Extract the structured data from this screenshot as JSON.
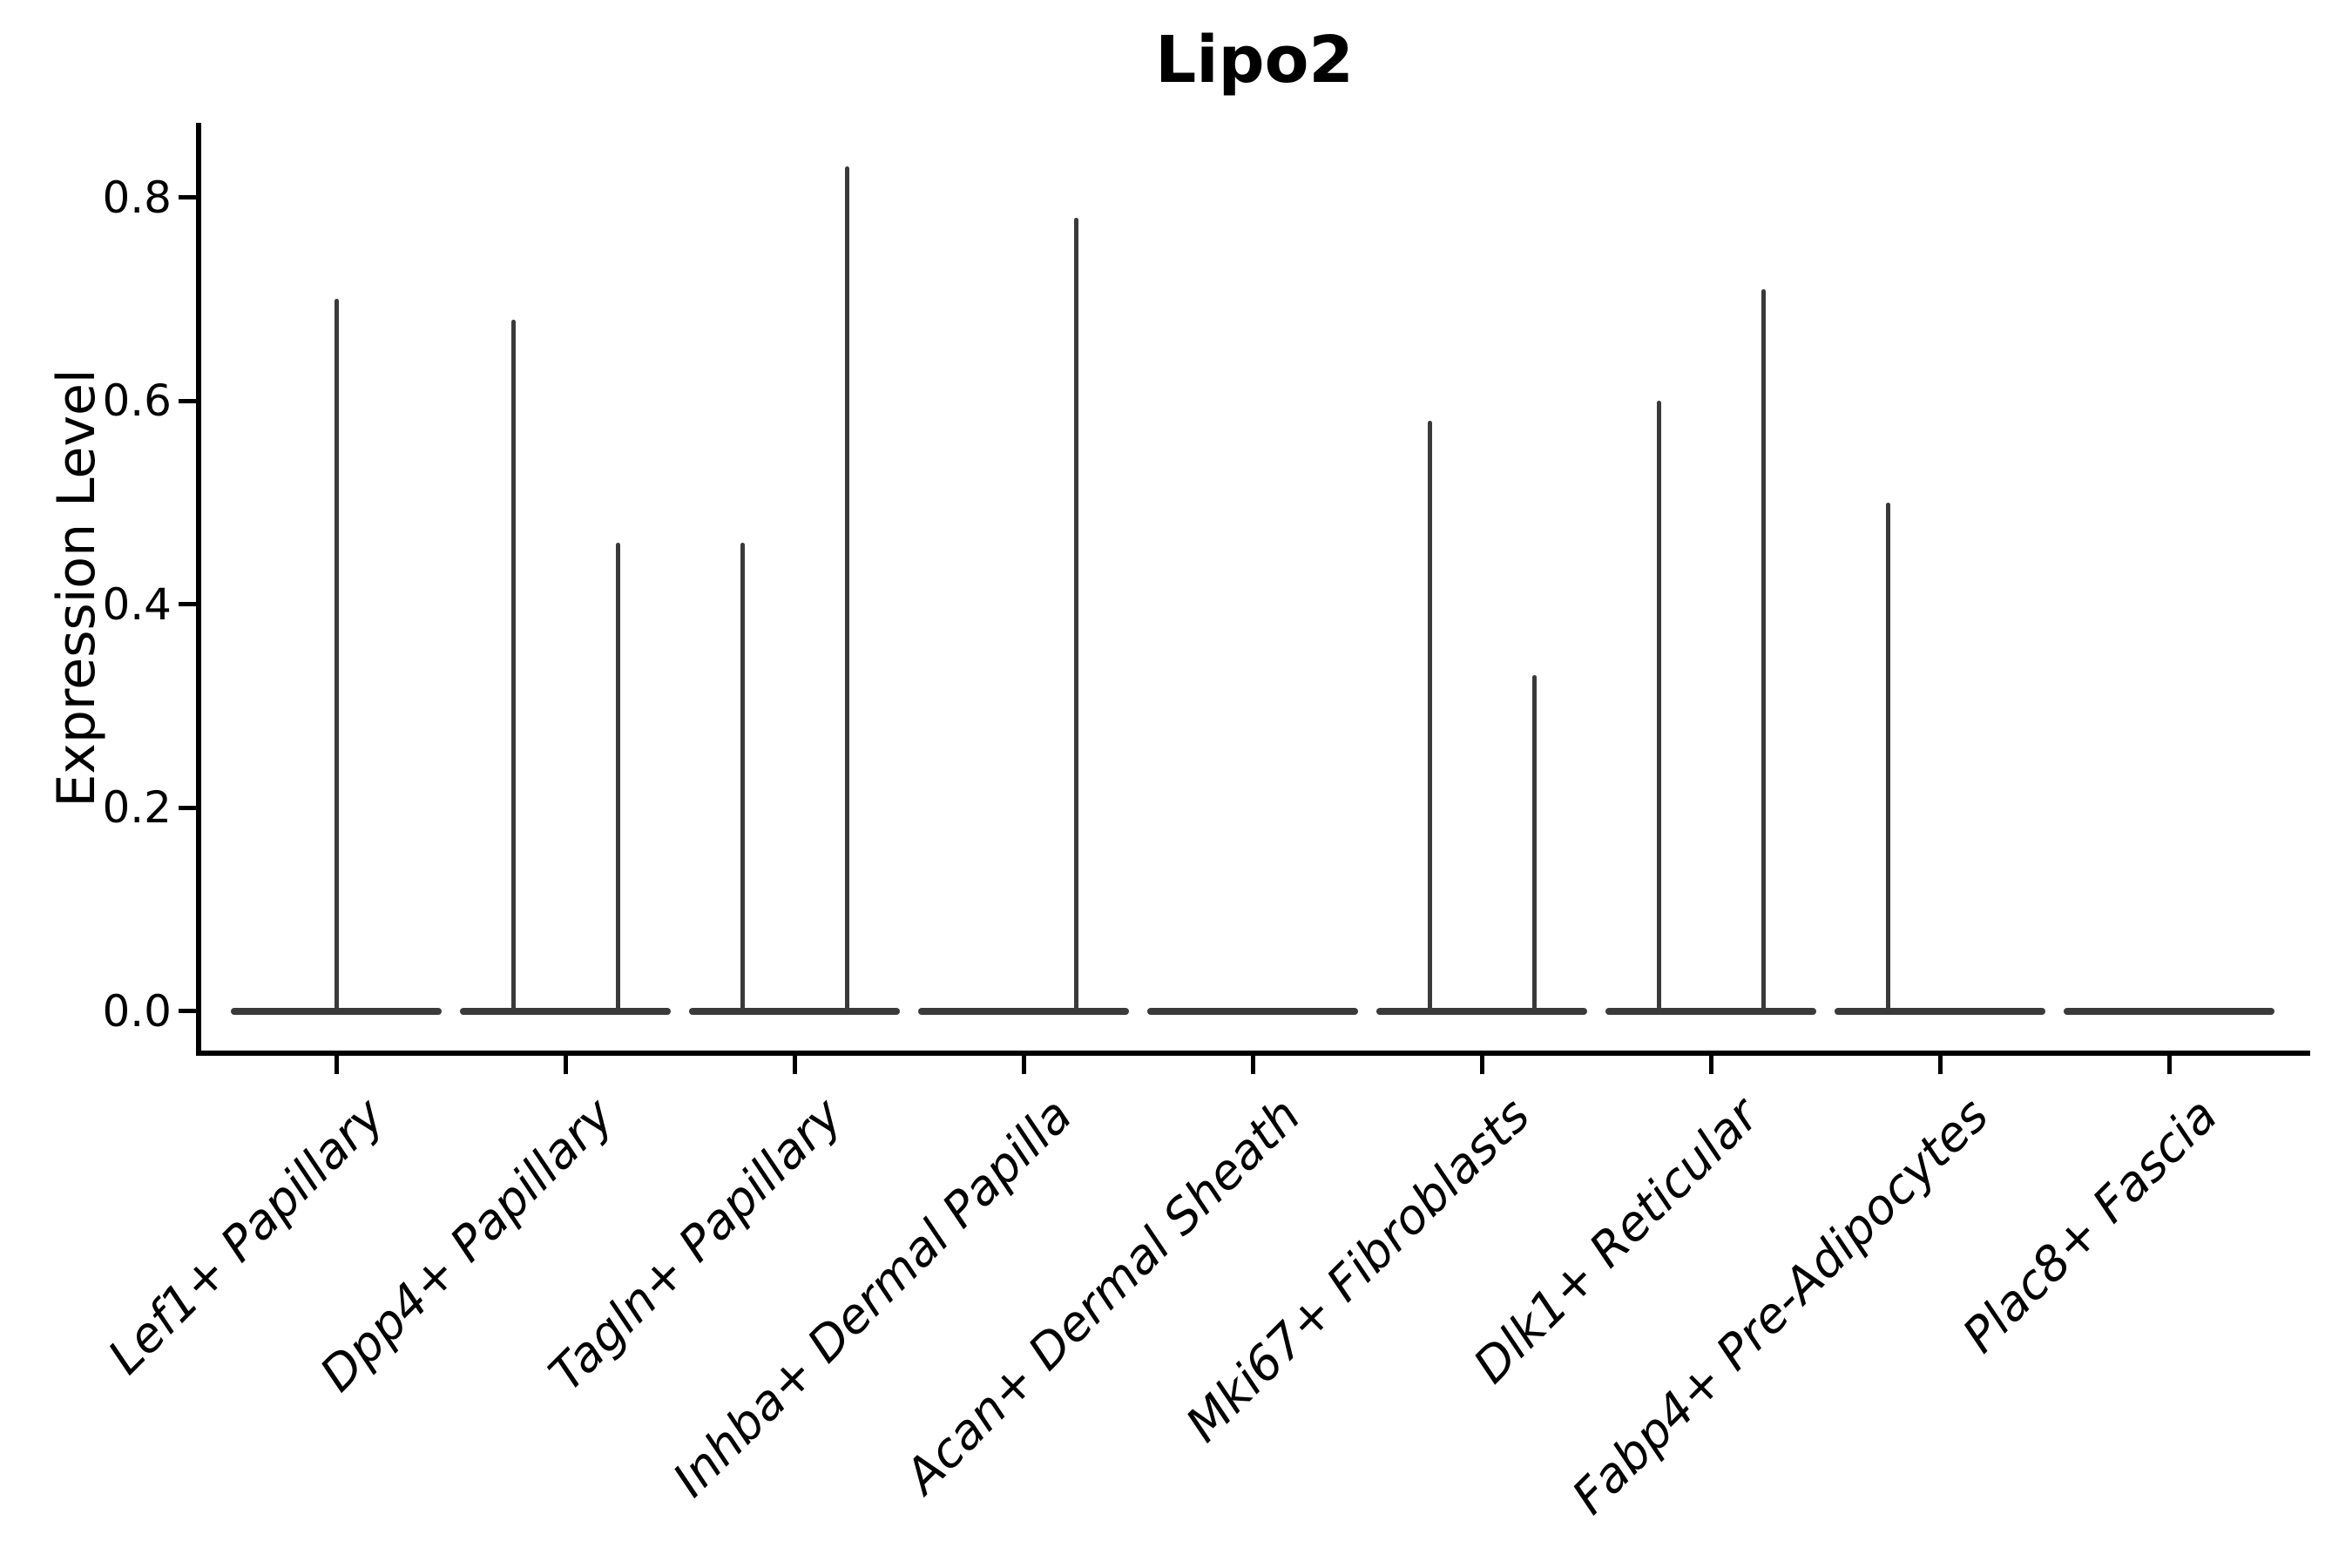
{
  "chart_data": {
    "type": "violin",
    "title": "Lipo2",
    "ylabel": "Expression Level",
    "xlabel": "",
    "y_ticks": [
      0.0,
      0.2,
      0.4,
      0.6,
      0.8
    ],
    "y_tick_labels": [
      "0.0",
      "0.2",
      "0.4",
      "0.6",
      "0.8"
    ],
    "ylim": [
      -0.04,
      0.87
    ],
    "grid": false,
    "legend": null,
    "x_tick_rotation": 45,
    "baseline_value": 0.0,
    "categories": [
      "Lef1+ Papillary",
      "Dpp4+ Papillary",
      "Tagln+ Papillary",
      "Inhba+ Dermal Papilla",
      "Acan+ Dermal Sheath",
      "Mki67+ Fibroblasts",
      "Dlk1+ Reticular",
      "Fabp4+ Pre-Adipocytes",
      "Plac8+ Fascia"
    ],
    "violins": [
      {
        "category": "Lef1+ Papillary",
        "spikes": [
          {
            "position": "center",
            "max": 0.7
          }
        ]
      },
      {
        "category": "Dpp4+ Papillary",
        "spikes": [
          {
            "position": "left",
            "max": 0.68
          },
          {
            "position": "right",
            "max": 0.46
          }
        ]
      },
      {
        "category": "Tagln+ Papillary",
        "spikes": [
          {
            "position": "left",
            "max": 0.46
          },
          {
            "position": "right",
            "max": 0.83
          }
        ]
      },
      {
        "category": "Inhba+ Dermal Papilla",
        "spikes": [
          {
            "position": "right",
            "max": 0.78
          }
        ]
      },
      {
        "category": "Acan+ Dermal Sheath",
        "spikes": []
      },
      {
        "category": "Mki67+ Fibroblasts",
        "spikes": [
          {
            "position": "left",
            "max": 0.58
          },
          {
            "position": "right",
            "max": 0.33
          }
        ]
      },
      {
        "category": "Dlk1+ Reticular",
        "spikes": [
          {
            "position": "left",
            "max": 0.6
          },
          {
            "position": "right",
            "max": 0.71
          }
        ]
      },
      {
        "category": "Fabp4+ Pre-Adipocytes",
        "spikes": [
          {
            "position": "left",
            "max": 0.5
          }
        ]
      },
      {
        "category": "Plac8+ Fascia",
        "spikes": []
      }
    ],
    "colors": {
      "violin_line": "#3a3a3a",
      "axis": "#000000",
      "text": "#000000",
      "background": "#ffffff"
    }
  }
}
